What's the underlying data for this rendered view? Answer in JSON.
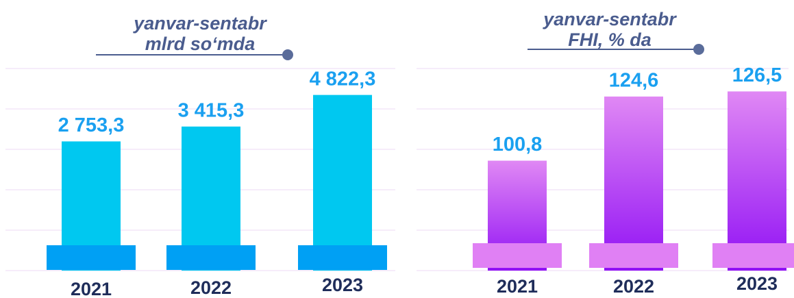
{
  "chart_data": [
    {
      "type": "bar",
      "title": [
        "yanvar-sentabr",
        "mlrd so‘mda"
      ],
      "categories": [
        "2021",
        "2022",
        "2023"
      ],
      "values": [
        2753.3,
        3415.3,
        4822.3
      ],
      "value_labels": [
        "2 753,3",
        "3 415,3",
        "4 822,3"
      ],
      "color": "#00c8f0",
      "ylim": [
        -3000,
        6000
      ],
      "grid": true
    },
    {
      "type": "bar",
      "title": [
        "yanvar-sentabr",
        "FHI, % da"
      ],
      "categories": [
        "2021",
        "2022",
        "2023"
      ],
      "values": [
        100.8,
        124.6,
        126.5
      ],
      "value_labels": [
        "100,8",
        "124,6",
        "126,5"
      ],
      "color": "#d070f0",
      "ylim": [
        60,
        135
      ],
      "grid": true
    }
  ]
}
